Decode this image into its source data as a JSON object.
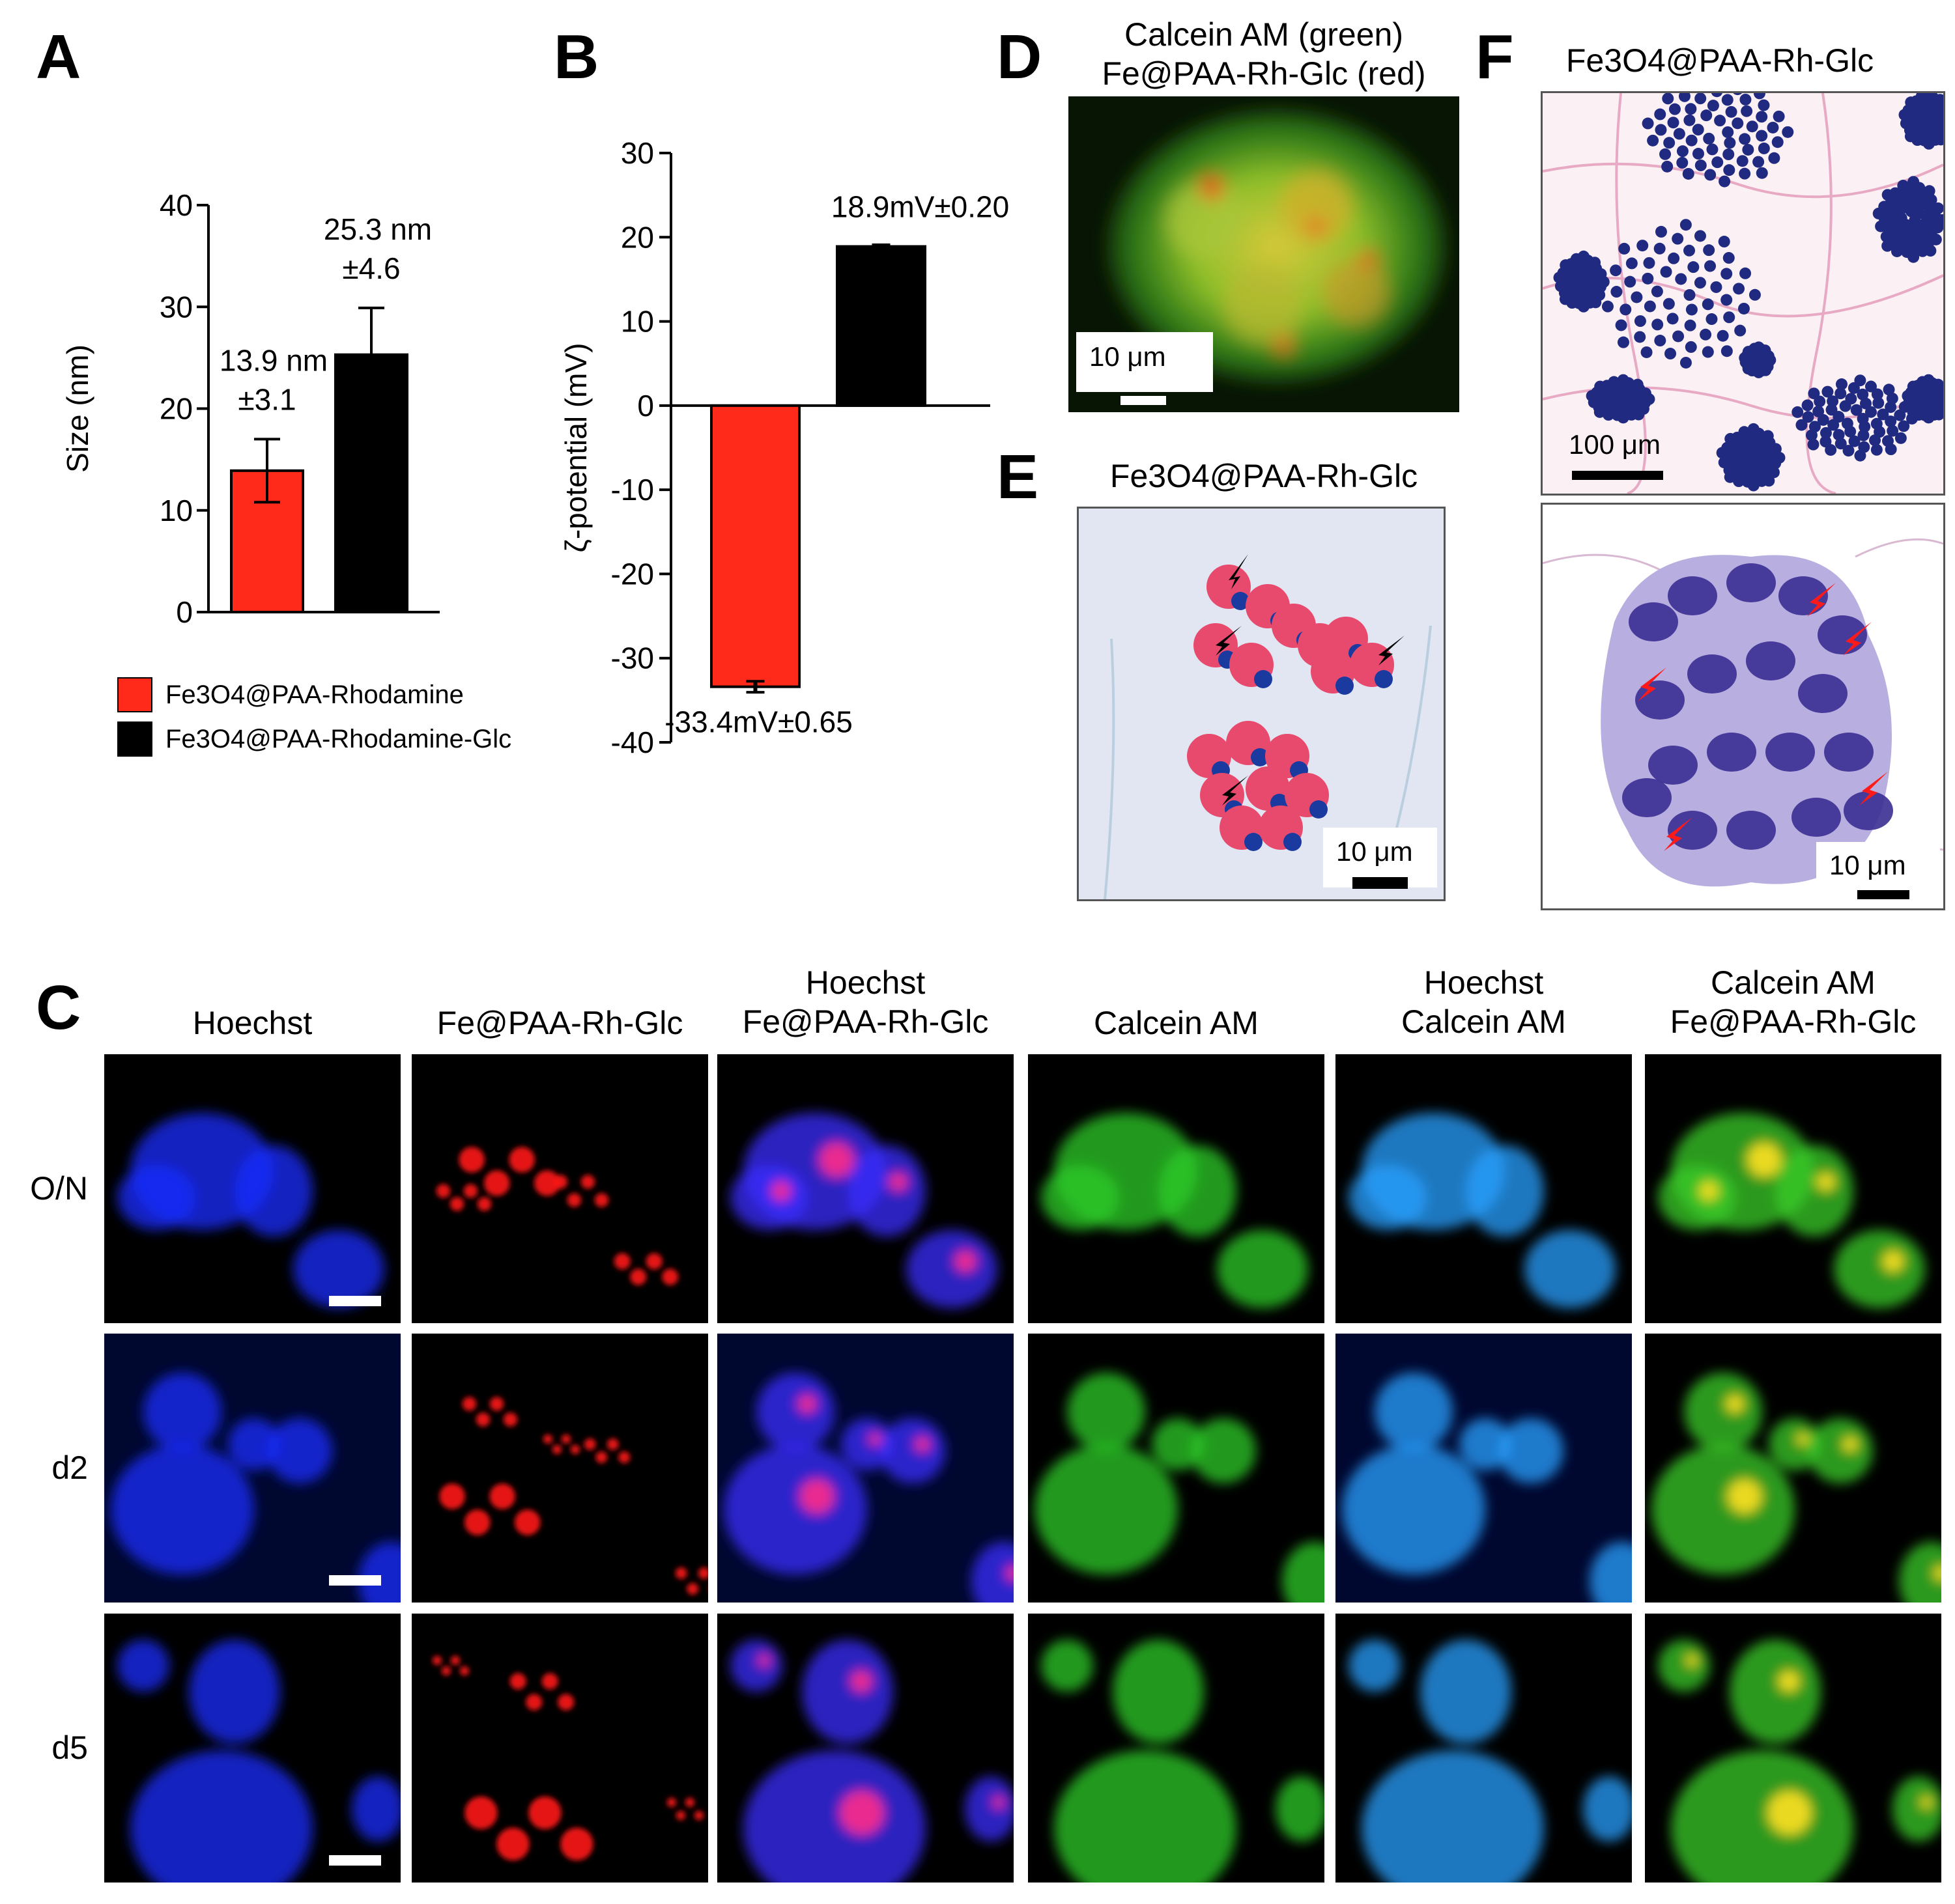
{
  "panels": {
    "A": "A",
    "B": "B",
    "C": "C",
    "D": "D",
    "E": "E",
    "F": "F"
  },
  "colors": {
    "red_bar": "#ff2a1a",
    "black_bar": "#000000"
  },
  "chart_data": [
    {
      "type": "bar",
      "panel": "A",
      "categories": [
        "Fe3O4@PAA-Rhodamine",
        "Fe3O4@PAA-Rhodamine-Glc"
      ],
      "values": [
        13.9,
        25.3
      ],
      "errors": [
        3.1,
        4.6
      ],
      "ylabel": "Size (nm)",
      "ylim": [
        0,
        40
      ],
      "yticks": [
        "0",
        "10",
        "20",
        "30",
        "40"
      ],
      "data_labels": [
        [
          "13.9 nm",
          "±3.1"
        ],
        [
          "25.3 nm",
          "±4.6"
        ]
      ],
      "legend": [
        "Fe3O4@PAA-Rhodamine",
        "Fe3O4@PAA-Rhodamine-Glc"
      ],
      "legend_placement": "bottom"
    },
    {
      "type": "bar",
      "panel": "B",
      "categories": [
        "Fe3O4@PAA-Rhodamine",
        "Fe3O4@PAA-Rhodamine-Glc"
      ],
      "values": [
        -33.4,
        18.9
      ],
      "errors": [
        0.65,
        0.2
      ],
      "ylabel": "ζ-potential (mV)",
      "ylim": [
        -40,
        30
      ],
      "yticks": [
        "-40",
        "-30",
        "-20",
        "-10",
        "0",
        "10",
        "20",
        "30"
      ],
      "data_labels": [
        "-33.4mV±0.65",
        "18.9mV±0.20"
      ]
    }
  ],
  "panel_C": {
    "columns": [
      "Hoechst",
      "Fe@PAA-Rh-Glc",
      "Hoechst\nFe@PAA-Rh-Glc",
      "Calcein AM",
      "Hoechst\nCalcein AM",
      "Calcein AM\nFe@PAA-Rh-Glc"
    ],
    "rows": [
      "O/N",
      "d2",
      "d5"
    ]
  },
  "panel_D": {
    "title_line1": "Calcein AM (green)",
    "title_line2": "Fe@PAA-Rh-Glc (red)",
    "scale": "10 μm"
  },
  "panel_E": {
    "title": "Fe3O4@PAA-Rh-Glc",
    "scale": "10 μm"
  },
  "panel_F": {
    "title": "Fe3O4@PAA-Rh-Glc",
    "scale_top": "100 μm",
    "scale_bottom": "10 μm"
  }
}
